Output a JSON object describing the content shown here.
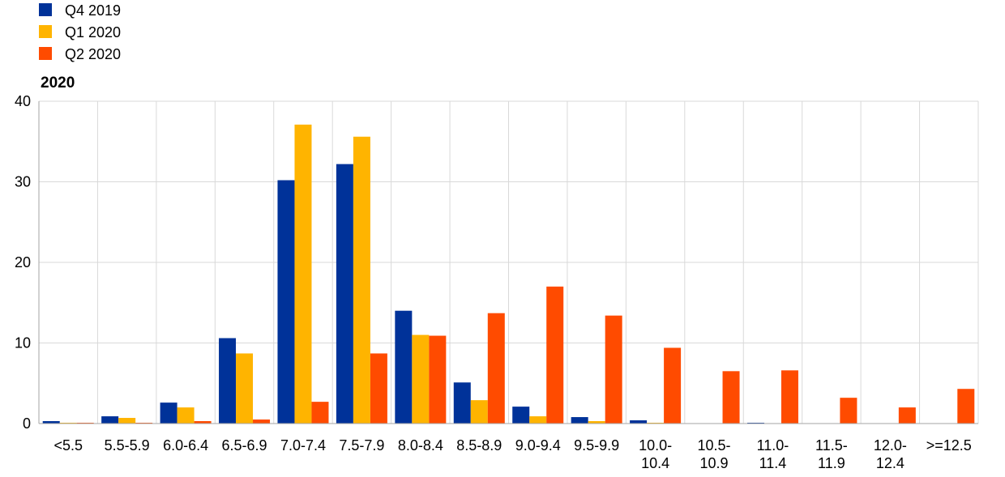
{
  "chart_data": {
    "type": "bar",
    "title": "2020",
    "xlabel": "",
    "ylabel": "",
    "ylim": [
      0,
      40
    ],
    "yticks": [
      0,
      10,
      20,
      30,
      40
    ],
    "grid": true,
    "legend_position": "top-left",
    "categories": [
      "<5.5",
      "5.5-5.9",
      "6.0-6.4",
      "6.5-6.9",
      "7.0-7.4",
      "7.5-7.9",
      "8.0-8.4",
      "8.5-8.9",
      "9.0-9.4",
      "9.5-9.9",
      "10.0-10.4",
      "10.5-10.9",
      "11.0-11.4",
      "11.5-11.9",
      "12.0-12.4",
      ">=12.5"
    ],
    "category_label_lines": [
      [
        "<5.5"
      ],
      [
        "5.5-5.9"
      ],
      [
        "6.0-6.4"
      ],
      [
        "6.5-6.9"
      ],
      [
        "7.0-7.4"
      ],
      [
        "7.5-7.9"
      ],
      [
        "8.0-8.4"
      ],
      [
        "8.5-8.9"
      ],
      [
        "9.0-9.4"
      ],
      [
        "9.5-9.9"
      ],
      [
        "10.0-",
        "10.4"
      ],
      [
        "10.5-",
        "10.9"
      ],
      [
        "11.0-",
        "11.4"
      ],
      [
        "11.5-",
        "11.9"
      ],
      [
        "12.0-",
        "12.4"
      ],
      [
        ">=12.5"
      ]
    ],
    "series": [
      {
        "name": "Q4 2019",
        "color": "#003299",
        "values": [
          0.3,
          0.9,
          2.6,
          10.6,
          30.2,
          32.2,
          14.0,
          5.1,
          2.1,
          0.8,
          0.4,
          0.0,
          0.1,
          0.0,
          0.0,
          0.0
        ]
      },
      {
        "name": "Q1 2020",
        "color": "#FFB400",
        "values": [
          0.1,
          0.7,
          2.0,
          8.7,
          37.1,
          35.6,
          11.0,
          2.9,
          0.9,
          0.3,
          0.1,
          0.0,
          0.0,
          0.0,
          0.0,
          0.0
        ]
      },
      {
        "name": "Q2 2020",
        "color": "#FF4B00",
        "values": [
          0.1,
          0.1,
          0.3,
          0.5,
          2.7,
          8.7,
          10.9,
          13.7,
          17.0,
          13.4,
          9.4,
          6.5,
          6.6,
          3.2,
          2.0,
          4.3
        ]
      }
    ]
  }
}
